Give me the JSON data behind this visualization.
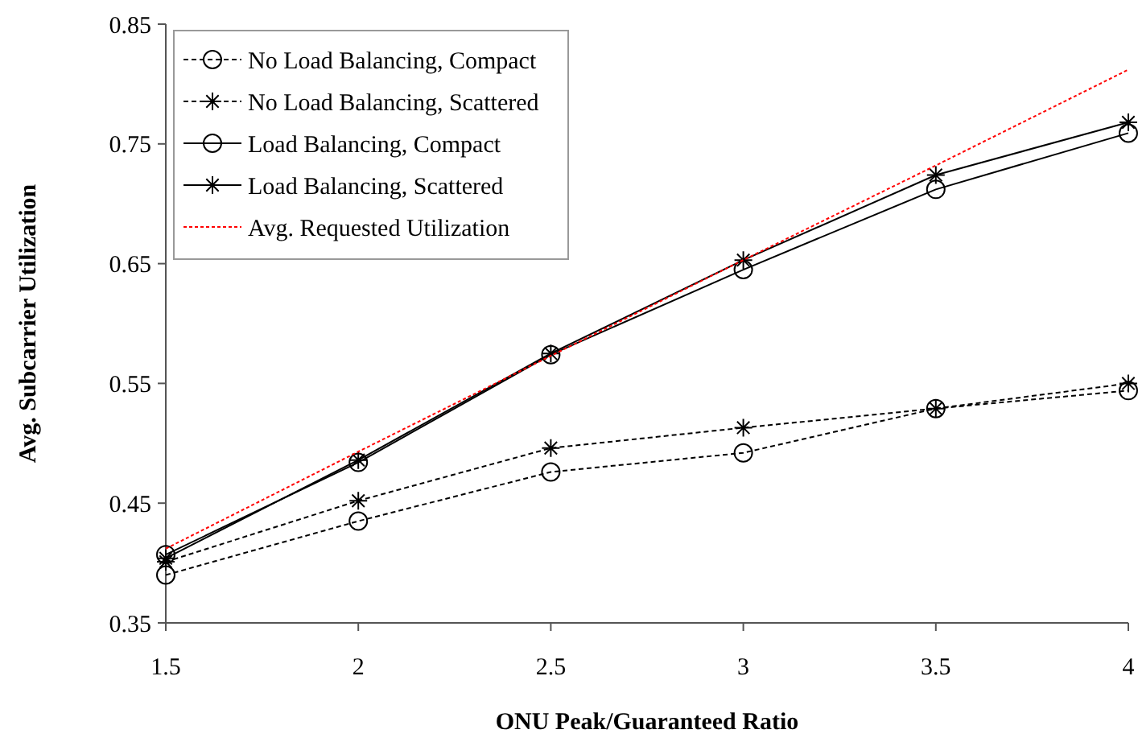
{
  "chart_data": {
    "type": "line",
    "xlabel": "ONU Peak/Guaranteed Ratio",
    "ylabel": "Avg. Subcarrier Utilization",
    "x": [
      1.5,
      2,
      2.5,
      3,
      3.5,
      4
    ],
    "series": [
      {
        "name": "No Load Balancing, Compact",
        "color": "#000000",
        "marker": "circle",
        "line_style": "dashed",
        "values": [
          0.39,
          0.435,
          0.476,
          0.492,
          0.529,
          0.544
        ]
      },
      {
        "name": "No Load Balancing, Scattered",
        "color": "#000000",
        "marker": "cross",
        "line_style": "dashed",
        "values": [
          0.401,
          0.452,
          0.496,
          0.513,
          0.529,
          0.55
        ]
      },
      {
        "name": "Load Balancing, Compact",
        "color": "#000000",
        "marker": "circle",
        "line_style": "solid",
        "values": [
          0.407,
          0.484,
          0.574,
          0.645,
          0.712,
          0.759
        ]
      },
      {
        "name": "Load Balancing, Scattered",
        "color": "#000000",
        "marker": "cross",
        "line_style": "solid",
        "values": [
          0.404,
          0.486,
          0.575,
          0.653,
          0.724,
          0.768
        ]
      },
      {
        "name": "Avg. Requested Utilization",
        "color": "#ff0000",
        "marker": "none",
        "line_style": "dotted",
        "values": [
          0.412,
          0.493,
          0.573,
          0.653,
          0.732,
          0.812
        ]
      }
    ],
    "xlim": [
      1.5,
      4
    ],
    "xticks": [
      1.5,
      2,
      2.5,
      3,
      3.5,
      4
    ],
    "ylim": [
      0.35,
      0.85
    ],
    "yticks": [
      0.35,
      0.45,
      0.55,
      0.65,
      0.75,
      0.85
    ],
    "grid": false,
    "legend": "top left"
  }
}
